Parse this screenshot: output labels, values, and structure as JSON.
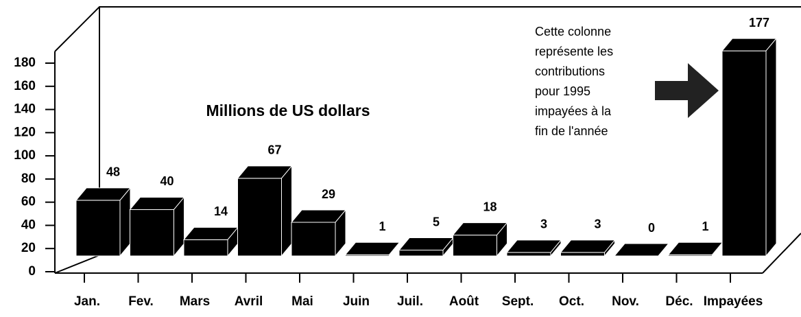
{
  "chart_data": {
    "type": "bar3d",
    "title": "Millions de US dollars",
    "annotation": [
      "Cette colonne",
      "représente les",
      "contributions",
      "pour 1995",
      "impayées à la",
      "fin de l'année"
    ],
    "categories": [
      "Jan.",
      "Fev.",
      "Mars",
      "Avril",
      "Mai",
      "Juin",
      "Juil.",
      "Août",
      "Sept.",
      "Oct.",
      "Nov.",
      "Déc.",
      "Impayées"
    ],
    "values": [
      48,
      40,
      14,
      67,
      29,
      1,
      5,
      18,
      3,
      3,
      0,
      1,
      177
    ],
    "color": "#000000",
    "ylim": [
      0,
      180
    ],
    "yticks": [
      0,
      20,
      40,
      60,
      80,
      100,
      120,
      140,
      160,
      180
    ]
  }
}
